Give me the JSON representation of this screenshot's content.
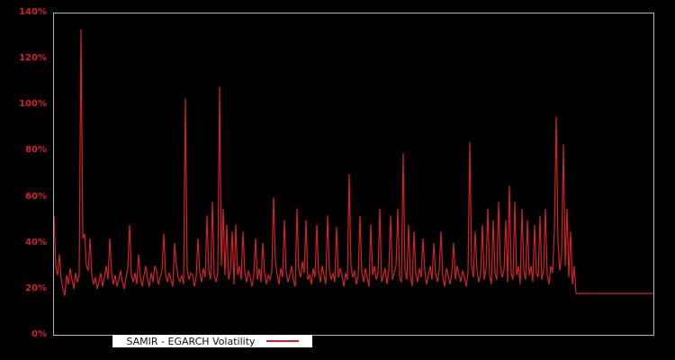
{
  "page": {
    "background": "#000000"
  },
  "chart": {
    "legend": {
      "label": "SAMIR - EGARCH Volatility",
      "line_color": "#d42127",
      "background": "#ffffff",
      "text_color": "#111111"
    },
    "axis": {
      "tick_label_color": "#d42127",
      "border_color": "#b3b3b3"
    }
  },
  "chart_data": {
    "type": "line",
    "title": "",
    "xlabel": "",
    "ylabel": "",
    "ylim": [
      0,
      140
    ],
    "y_unit": "percent",
    "y_tick_step": 20,
    "y_tick_labels": [
      "0%",
      "20%",
      "40%",
      "60%",
      "80%",
      "100%",
      "120%",
      "140%"
    ],
    "grid": false,
    "legend_position": "bottom-left-inside",
    "plot_background": "#000000",
    "series": [
      {
        "name": "SAMIR - EGARCH Volatility",
        "color": "#d42127",
        "values": [
          52,
          30,
          26,
          35,
          24,
          20,
          17,
          26,
          22,
          29,
          24,
          20,
          27,
          23,
          26,
          133,
          42,
          44,
          30,
          28,
          42,
          26,
          22,
          25,
          20,
          23,
          27,
          21,
          25,
          30,
          24,
          42,
          27,
          22,
          26,
          21,
          24,
          28,
          23,
          20,
          25,
          29,
          48,
          26,
          23,
          27,
          22,
          35,
          25,
          21,
          26,
          30,
          24,
          21,
          27,
          23,
          30,
          28,
          22,
          25,
          28,
          44,
          26,
          23,
          27,
          24,
          21,
          40,
          30,
          25,
          23,
          26,
          22,
          103,
          28,
          24,
          27,
          26,
          21,
          25,
          42,
          27,
          23,
          29,
          25,
          52,
          28,
          24,
          58,
          26,
          23,
          27,
          108,
          30,
          55,
          26,
          48,
          24,
          28,
          45,
          22,
          48,
          26,
          30,
          24,
          45,
          27,
          23,
          28,
          25,
          21,
          26,
          42,
          24,
          29,
          23,
          40,
          27,
          22,
          26,
          24,
          28,
          60,
          32,
          26,
          22,
          29,
          25,
          50,
          27,
          23,
          26,
          30,
          24,
          21,
          55,
          28,
          25,
          32,
          27,
          50,
          24,
          26,
          22,
          29,
          25,
          48,
          27,
          23,
          30,
          26,
          22,
          52,
          28,
          24,
          27,
          23,
          47,
          25,
          29,
          26,
          21,
          27,
          24,
          70,
          30,
          25,
          28,
          22,
          26,
          52,
          27,
          23,
          29,
          25,
          21,
          48,
          26,
          30,
          24,
          27,
          55,
          23,
          26,
          29,
          22,
          28,
          52,
          24,
          27,
          30,
          55,
          25,
          23,
          79,
          28,
          24,
          48,
          26,
          21,
          45,
          27,
          23,
          29,
          25,
          42,
          28,
          22,
          26,
          30,
          24,
          40,
          27,
          23,
          28,
          45,
          25,
          21,
          29,
          26,
          22,
          27,
          40,
          24,
          30,
          26,
          23,
          28,
          25,
          21,
          27,
          84,
          30,
          25,
          45,
          28,
          23,
          26,
          48,
          24,
          29,
          55,
          26,
          22,
          50,
          27,
          24,
          58,
          30,
          25,
          28,
          50,
          23,
          65,
          27,
          24,
          58,
          26,
          30,
          22,
          55,
          28,
          24,
          50,
          26,
          30,
          23,
          48,
          27,
          25,
          52,
          24,
          28,
          55,
          26,
          22,
          30,
          27,
          45,
          95,
          40,
          28,
          35,
          83,
          30,
          55,
          25,
          45,
          22,
          30,
          18,
          18,
          18,
          18,
          18,
          18,
          18,
          18,
          18,
          18,
          18,
          18,
          18,
          18,
          18,
          18,
          18,
          18,
          18,
          18,
          18,
          18,
          18,
          18,
          18,
          18,
          18,
          18,
          18,
          18,
          18,
          18,
          18,
          18,
          18,
          18,
          18,
          18,
          18,
          18,
          18,
          18,
          18,
          18
        ]
      }
    ]
  }
}
